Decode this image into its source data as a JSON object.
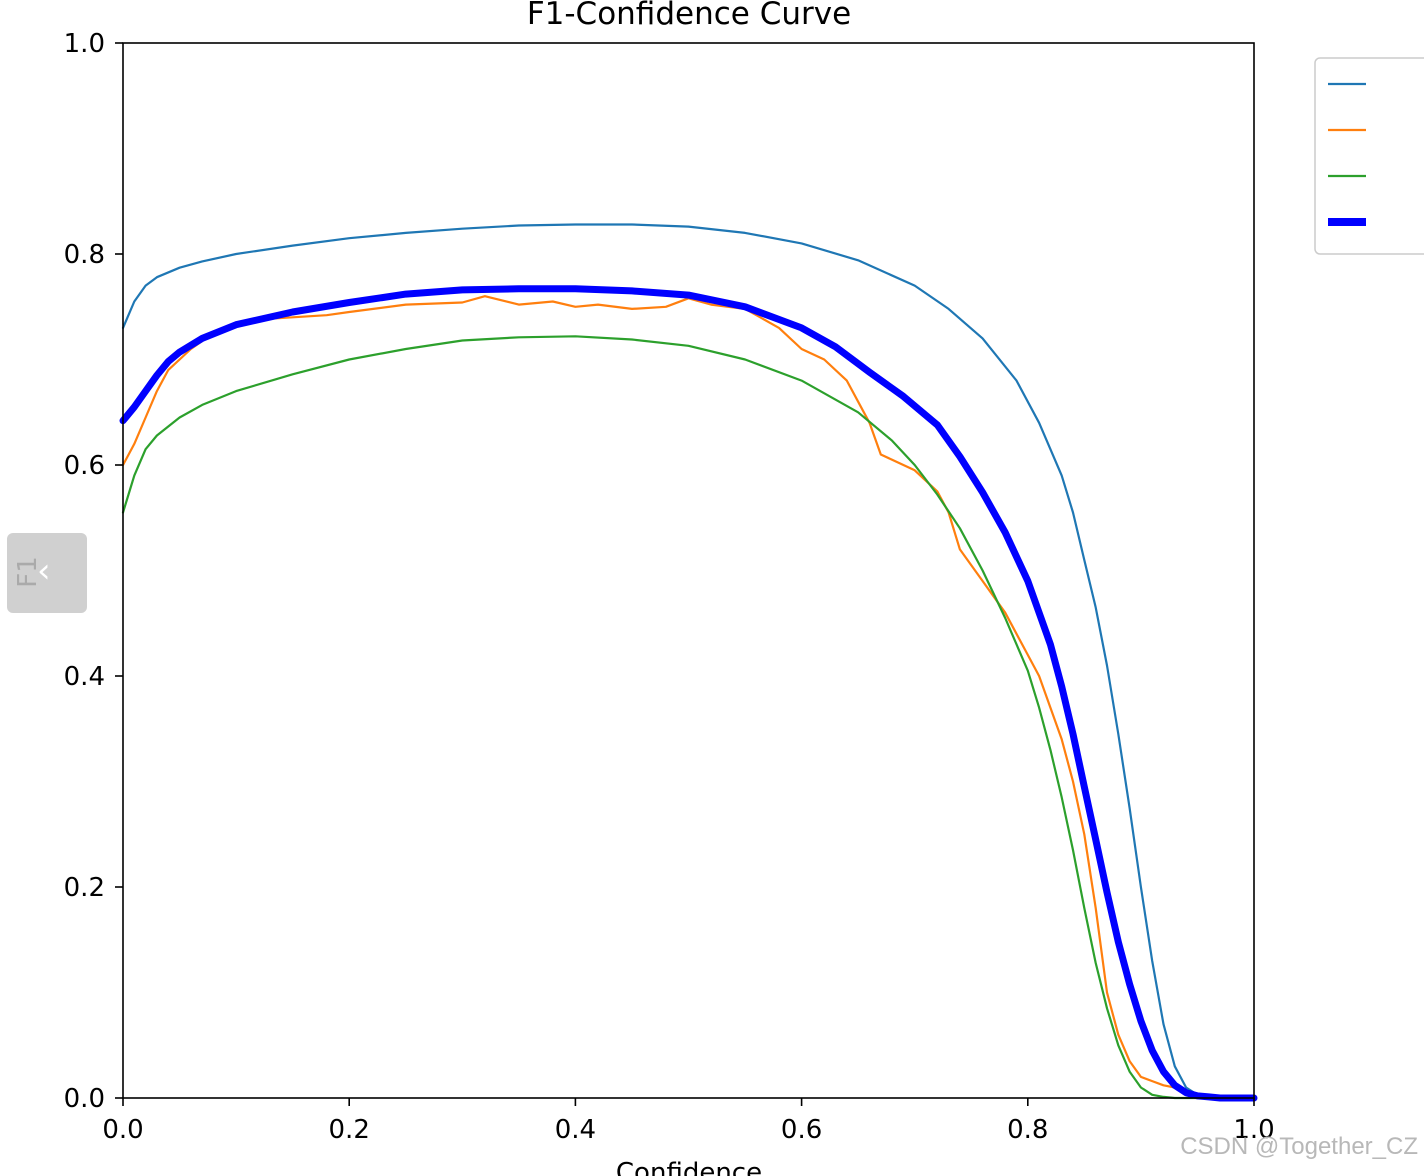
{
  "chart_data": {
    "type": "line",
    "title": "F1-Confidence Curve",
    "xlabel": "Confidence",
    "ylabel": "F1",
    "xlim": [
      0.0,
      1.0
    ],
    "ylim": [
      0.0,
      1.0
    ],
    "xticks": [
      "0.0",
      "0.2",
      "0.4",
      "0.6",
      "0.8",
      "1.0"
    ],
    "yticks": [
      "0.0",
      "0.2",
      "0.4",
      "0.6",
      "0.8",
      "1.0"
    ],
    "grid": false,
    "legend_position": "outside-top-right",
    "series": [
      {
        "color": "#1f77b4",
        "line_width": "thin",
        "x": [
          0.0,
          0.01,
          0.02,
          0.03,
          0.05,
          0.07,
          0.1,
          0.15,
          0.2,
          0.25,
          0.3,
          0.35,
          0.4,
          0.45,
          0.5,
          0.55,
          0.6,
          0.65,
          0.7,
          0.73,
          0.76,
          0.79,
          0.81,
          0.83,
          0.84,
          0.85,
          0.86,
          0.87,
          0.88,
          0.89,
          0.9,
          0.91,
          0.92,
          0.93,
          0.94,
          0.95,
          0.96,
          1.0
        ],
        "y": [
          0.73,
          0.755,
          0.77,
          0.778,
          0.787,
          0.793,
          0.8,
          0.808,
          0.815,
          0.82,
          0.824,
          0.827,
          0.828,
          0.828,
          0.826,
          0.82,
          0.81,
          0.794,
          0.77,
          0.748,
          0.72,
          0.68,
          0.64,
          0.59,
          0.555,
          0.51,
          0.465,
          0.41,
          0.345,
          0.275,
          0.2,
          0.13,
          0.07,
          0.03,
          0.01,
          0.003,
          0.001,
          0.0
        ]
      },
      {
        "color": "#ff7f0e",
        "line_width": "thin",
        "x": [
          0.0,
          0.01,
          0.02,
          0.03,
          0.04,
          0.06,
          0.08,
          0.1,
          0.12,
          0.15,
          0.18,
          0.2,
          0.25,
          0.3,
          0.32,
          0.35,
          0.38,
          0.4,
          0.42,
          0.45,
          0.48,
          0.5,
          0.52,
          0.55,
          0.56,
          0.58,
          0.6,
          0.62,
          0.64,
          0.66,
          0.67,
          0.68,
          0.7,
          0.72,
          0.73,
          0.74,
          0.76,
          0.78,
          0.8,
          0.81,
          0.82,
          0.83,
          0.84,
          0.85,
          0.86,
          0.87,
          0.88,
          0.89,
          0.9,
          0.91,
          0.92,
          0.93,
          0.94,
          0.95,
          0.96,
          1.0
        ],
        "y": [
          0.6,
          0.62,
          0.645,
          0.67,
          0.69,
          0.71,
          0.725,
          0.735,
          0.738,
          0.74,
          0.742,
          0.745,
          0.752,
          0.754,
          0.76,
          0.752,
          0.755,
          0.75,
          0.752,
          0.748,
          0.75,
          0.758,
          0.752,
          0.748,
          0.742,
          0.73,
          0.71,
          0.7,
          0.68,
          0.64,
          0.61,
          0.605,
          0.595,
          0.575,
          0.555,
          0.52,
          0.49,
          0.46,
          0.42,
          0.4,
          0.37,
          0.34,
          0.3,
          0.25,
          0.18,
          0.1,
          0.06,
          0.035,
          0.02,
          0.016,
          0.012,
          0.01,
          0.006,
          0.002,
          0.0,
          0.0
        ]
      },
      {
        "color": "#2ca02c",
        "line_width": "thin",
        "x": [
          0.0,
          0.01,
          0.02,
          0.03,
          0.05,
          0.07,
          0.1,
          0.15,
          0.2,
          0.25,
          0.3,
          0.35,
          0.4,
          0.45,
          0.5,
          0.55,
          0.6,
          0.65,
          0.68,
          0.7,
          0.72,
          0.74,
          0.76,
          0.78,
          0.8,
          0.81,
          0.82,
          0.83,
          0.84,
          0.85,
          0.86,
          0.87,
          0.88,
          0.89,
          0.9,
          0.91,
          0.92,
          0.93,
          0.94,
          0.95,
          1.0
        ],
        "y": [
          0.555,
          0.59,
          0.615,
          0.628,
          0.645,
          0.657,
          0.67,
          0.686,
          0.7,
          0.71,
          0.718,
          0.721,
          0.722,
          0.719,
          0.713,
          0.7,
          0.68,
          0.65,
          0.623,
          0.6,
          0.572,
          0.54,
          0.5,
          0.455,
          0.405,
          0.37,
          0.33,
          0.285,
          0.235,
          0.18,
          0.128,
          0.085,
          0.05,
          0.025,
          0.01,
          0.003,
          0.001,
          0.0,
          0.0,
          0.0,
          0.0
        ]
      },
      {
        "color": "#0000ff",
        "line_width": "thick",
        "x": [
          0.0,
          0.01,
          0.02,
          0.03,
          0.04,
          0.05,
          0.07,
          0.1,
          0.15,
          0.2,
          0.25,
          0.3,
          0.35,
          0.4,
          0.45,
          0.5,
          0.55,
          0.6,
          0.63,
          0.66,
          0.69,
          0.72,
          0.74,
          0.76,
          0.78,
          0.8,
          0.82,
          0.83,
          0.84,
          0.85,
          0.86,
          0.87,
          0.88,
          0.89,
          0.9,
          0.91,
          0.92,
          0.93,
          0.94,
          0.95,
          0.96,
          0.97,
          1.0
        ],
        "y": [
          0.642,
          0.655,
          0.67,
          0.685,
          0.698,
          0.707,
          0.72,
          0.733,
          0.745,
          0.754,
          0.762,
          0.766,
          0.767,
          0.767,
          0.765,
          0.761,
          0.75,
          0.73,
          0.712,
          0.688,
          0.665,
          0.638,
          0.608,
          0.574,
          0.536,
          0.49,
          0.43,
          0.39,
          0.345,
          0.295,
          0.245,
          0.195,
          0.148,
          0.108,
          0.073,
          0.045,
          0.025,
          0.012,
          0.005,
          0.002,
          0.001,
          0.0,
          0.0
        ]
      }
    ]
  },
  "overlay": {
    "nav_button_icon": "chevron-left-icon",
    "nav_button_glyph": "‹",
    "watermark": "CSDN @Together_CZ"
  }
}
